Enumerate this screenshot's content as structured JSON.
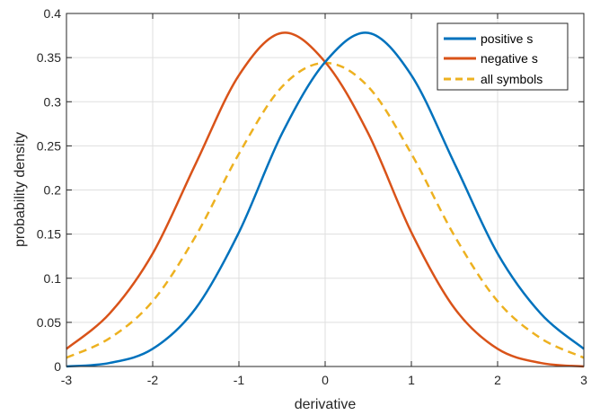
{
  "chart_data": {
    "type": "line",
    "xlabel": "derivative",
    "ylabel": "probability density",
    "xlim": [
      -3,
      3
    ],
    "ylim": [
      0,
      0.4
    ],
    "x_ticks": [
      -3,
      -2,
      -1,
      0,
      1,
      2,
      3
    ],
    "x_tick_labels": [
      "-3",
      "-2",
      "-1",
      "0",
      "1",
      "2",
      "3"
    ],
    "y_ticks": [
      0,
      0.05,
      0.1,
      0.15,
      0.2,
      0.25,
      0.3,
      0.35,
      0.4
    ],
    "y_tick_labels": [
      "0",
      "0.05",
      "0.1",
      "0.15",
      "0.2",
      "0.25",
      "0.3",
      "0.35",
      "0.4"
    ],
    "grid": true,
    "legend_position": "top-right",
    "series": [
      {
        "name": "positive s",
        "color": "#0072bd",
        "style": "solid",
        "x": [
          -3,
          -2.5,
          -2,
          -1.5,
          -1,
          -0.5,
          0,
          0.5,
          1,
          1.5,
          2,
          2.5,
          3
        ],
        "y": [
          0.0,
          0.004,
          0.02,
          0.066,
          0.152,
          0.264,
          0.345,
          0.378,
          0.33,
          0.23,
          0.128,
          0.06,
          0.02
        ]
      },
      {
        "name": "negative s",
        "color": "#d95319",
        "style": "solid",
        "x": [
          -3,
          -2.5,
          -2,
          -1.5,
          -1,
          -0.5,
          0,
          0.5,
          1,
          1.5,
          2,
          2.5,
          3
        ],
        "y": [
          0.02,
          0.06,
          0.128,
          0.23,
          0.33,
          0.378,
          0.345,
          0.264,
          0.152,
          0.066,
          0.02,
          0.004,
          0.0
        ]
      },
      {
        "name": "all symbols",
        "color": "#edb120",
        "style": "dashed",
        "x": [
          -3,
          -2.5,
          -2,
          -1.5,
          -1,
          -0.5,
          0,
          0.5,
          1,
          1.5,
          2,
          2.5,
          3
        ],
        "y": [
          0.01,
          0.032,
          0.074,
          0.148,
          0.241,
          0.317,
          0.344,
          0.317,
          0.241,
          0.148,
          0.074,
          0.032,
          0.01
        ]
      }
    ]
  }
}
